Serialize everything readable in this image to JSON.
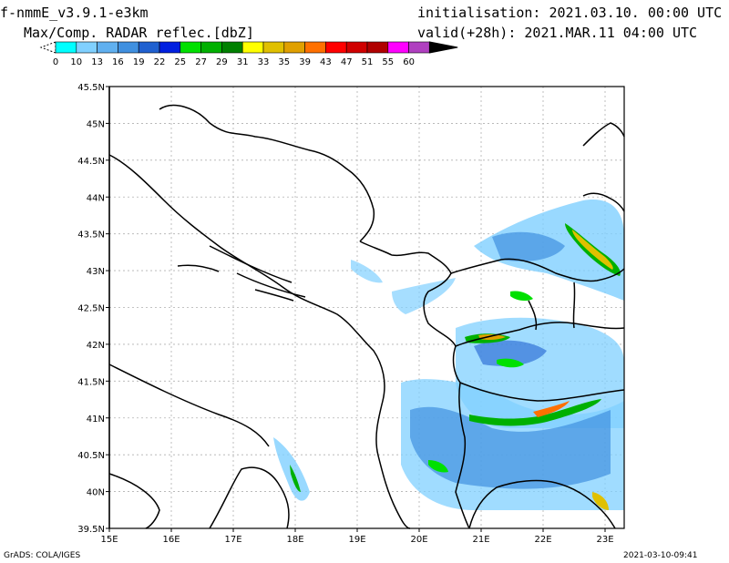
{
  "header": {
    "model": "f-nmmE_v3.9.1-e3km",
    "field": "Max/Comp. RADAR reflec.[dbZ]",
    "init": "initialisation: 2021.03.10. 00:00 UTC",
    "valid": "valid(+28h): 2021.MAR.11 04:00 UTC"
  },
  "colorbar": {
    "labels": [
      "0",
      "10",
      "13",
      "16",
      "19",
      "22",
      "25",
      "27",
      "29",
      "31",
      "33",
      "35",
      "39",
      "43",
      "47",
      "51",
      "55",
      "60"
    ],
    "colors": [
      "#00ffff",
      "#80d0ff",
      "#60b0f0",
      "#4090e0",
      "#2060d0",
      "#0020e0",
      "#00e000",
      "#00b000",
      "#008000",
      "#ffff00",
      "#e0c000",
      "#e0a000",
      "#ff7000",
      "#ff0000",
      "#d00000",
      "#b00000",
      "#ff00ff",
      "#b040c0",
      "#000000"
    ]
  },
  "axes": {
    "lat_labels": [
      "45.5N",
      "45N",
      "44.5N",
      "44N",
      "43.5N",
      "43N",
      "42.5N",
      "42N",
      "41.5N",
      "41N",
      "40.5N",
      "40N",
      "39.5N"
    ],
    "lon_labels": [
      "15E",
      "16E",
      "17E",
      "18E",
      "19E",
      "20E",
      "21E",
      "22E",
      "23E"
    ]
  },
  "footer": {
    "left": "GrADS: COLA/IGES",
    "right": "2021-03-10-09:41"
  }
}
